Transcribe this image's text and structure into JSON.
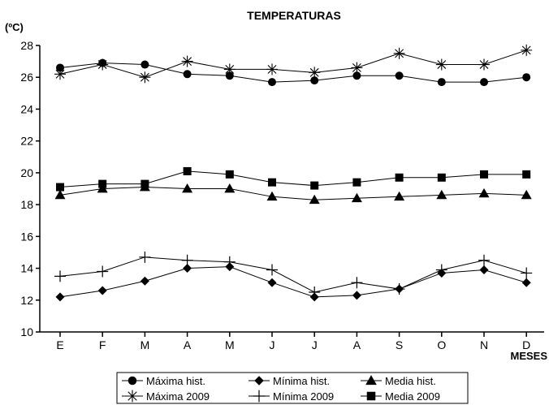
{
  "chart_data": {
    "type": "line",
    "title": "TEMPERATURAS",
    "ylabel": "(ºC)",
    "xlabel": "MESES",
    "categories": [
      "E",
      "F",
      "M",
      "A",
      "M",
      "J",
      "J",
      "A",
      "S",
      "O",
      "N",
      "D"
    ],
    "ylim": [
      10,
      28
    ],
    "yticks": [
      "10",
      "12",
      "14",
      "16",
      "18",
      "20",
      "22",
      "24",
      "26",
      "28"
    ],
    "grid": false,
    "legend_position": "bottom",
    "series": [
      {
        "name": "Máxima hist.",
        "marker": "circle",
        "values": [
          26.6,
          26.9,
          26.8,
          26.2,
          26.1,
          25.7,
          25.8,
          26.1,
          26.1,
          25.7,
          25.7,
          26.0
        ]
      },
      {
        "name": "Máxima 2009",
        "marker": "asterisk",
        "values": [
          26.2,
          26.8,
          26.0,
          27.0,
          26.5,
          26.5,
          26.3,
          26.6,
          27.5,
          26.8,
          26.8,
          27.7
        ]
      },
      {
        "name": "Media hist.",
        "marker": "triangle",
        "values": [
          18.6,
          19.0,
          19.1,
          19.0,
          19.0,
          18.5,
          18.3,
          18.4,
          18.5,
          18.6,
          18.7,
          18.6
        ]
      },
      {
        "name": "Media 2009",
        "marker": "square",
        "values": [
          19.1,
          19.3,
          19.3,
          20.1,
          19.9,
          19.4,
          19.2,
          19.4,
          19.7,
          19.7,
          19.9,
          19.9
        ]
      },
      {
        "name": "Mínima hist.",
        "marker": "diamond",
        "values": [
          12.2,
          12.6,
          13.2,
          14.0,
          14.1,
          13.1,
          12.2,
          12.3,
          12.7,
          13.7,
          13.9,
          13.1
        ]
      },
      {
        "name": "Mínima 2009",
        "marker": "plus",
        "values": [
          13.5,
          13.8,
          14.7,
          14.5,
          14.4,
          13.9,
          12.5,
          13.1,
          12.7,
          13.9,
          14.5,
          13.7
        ]
      }
    ],
    "legend_order": [
      "Máxima hist.",
      "Mínima hist.",
      "Media hist.",
      "Máxima 2009",
      "Mínima 2009",
      "Media 2009"
    ]
  }
}
